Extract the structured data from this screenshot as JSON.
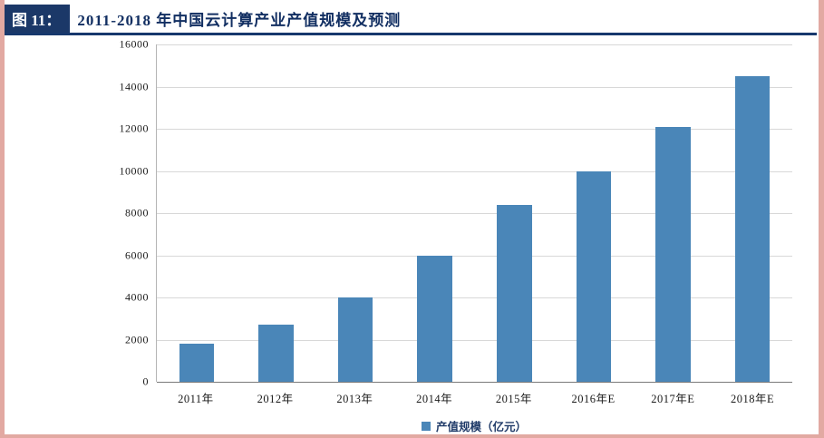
{
  "header": {
    "figure_label": "图 11：",
    "title": "2011-2018 年中国云计算产业产值规模及预测"
  },
  "chart_data": {
    "type": "bar",
    "title": "2011-2018 年中国云计算产业产值规模及预测",
    "categories": [
      "2011年",
      "2012年",
      "2013年",
      "2014年",
      "2015年",
      "2016年E",
      "2017年E",
      "2018年E"
    ],
    "values": [
      1800,
      2700,
      4000,
      6000,
      8400,
      10000,
      12100,
      14500
    ],
    "legend": [
      "产值规模（亿元）"
    ],
    "xlabel": "",
    "ylabel": "",
    "ylim": [
      0,
      16000
    ],
    "ytick": 2000,
    "grid": true,
    "legend_position": "bottom",
    "bar_color": "#4a86b8",
    "colors": {
      "header_box": "#1b3868",
      "title_text": "#122f62",
      "underline": "#17386d",
      "gridline": "#d8d8d8",
      "page_edge": "#e2a9a2"
    }
  }
}
